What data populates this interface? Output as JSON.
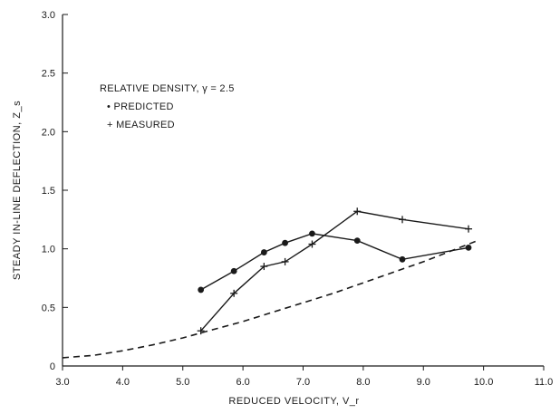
{
  "chart_data": {
    "type": "line",
    "title": "",
    "xlabel": "REDUCED VELOCITY, V_r",
    "ylabel": "STEADY IN-LINE DEFLECTION, Z_s",
    "xlim": [
      3.0,
      11.0
    ],
    "ylim": [
      0,
      3.0
    ],
    "x_ticks": [
      "3.0",
      "4.0",
      "5.0",
      "6.0",
      "7.0",
      "8.0",
      "9.0",
      "10.0",
      "11.0"
    ],
    "y_ticks": [
      "0",
      "0.5",
      "1.0",
      "1.5",
      "2.0",
      "2.5",
      "3.0"
    ],
    "grid": false,
    "legend": {
      "title": "RELATIVE DENSITY, γ = 2.5",
      "placement": "upper-left",
      "entries": [
        "• PREDICTED",
        "+ MEASURED"
      ]
    },
    "series": [
      {
        "name": "PREDICTED",
        "marker": "dot",
        "color": "#1a1a1a",
        "x": [
          5.3,
          5.85,
          6.35,
          6.7,
          7.15,
          7.9,
          8.65,
          9.75
        ],
        "y": [
          0.65,
          0.81,
          0.97,
          1.05,
          1.13,
          1.07,
          0.91,
          1.01
        ]
      },
      {
        "name": "MEASURED",
        "marker": "plus",
        "color": "#1a1a1a",
        "x": [
          5.3,
          5.85,
          6.35,
          6.7,
          7.15,
          7.9,
          8.65,
          9.75
        ],
        "y": [
          0.3,
          0.62,
          0.85,
          0.89,
          1.04,
          1.32,
          1.25,
          1.17
        ]
      },
      {
        "name": "",
        "marker": "none",
        "style": "dashed",
        "color": "#1a1a1a",
        "x": [
          3.0,
          3.5,
          4.0,
          4.5,
          5.0,
          5.5,
          6.0,
          6.5,
          7.0,
          7.5,
          8.0,
          8.5,
          9.0,
          9.5,
          9.9
        ],
        "y": [
          0.07,
          0.09,
          0.13,
          0.18,
          0.24,
          0.31,
          0.38,
          0.46,
          0.54,
          0.62,
          0.71,
          0.8,
          0.89,
          0.99,
          1.07
        ]
      }
    ]
  }
}
